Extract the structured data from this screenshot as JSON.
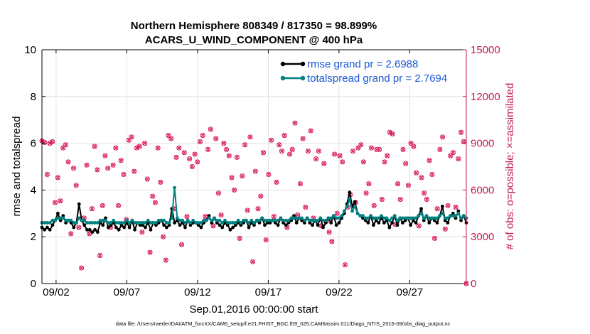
{
  "chart_data": {
    "type": "line",
    "title_line1": "Northern Hemisphere 808349 / 817350 = 98.899%",
    "title_line2": "ACARS_U_WIND_COMPONENT @ 400 hPa",
    "xlabel": "Sep.01,2016 00:00:00 start",
    "ylabel_left": "rmse and totalspread",
    "ylabel_right": "# of obs: o=possible; ×=assimilated",
    "footnote": "data file: /Users/raeder/DAI/ATM_forcXX/CAM6_setup/f.e21.FHIST_BGC.f09_025.CAM6assim.011/Diags_NTrS_2016-09/obs_diag_output.nc",
    "xlim": [
      0,
      30
    ],
    "x_tick_positions": [
      1,
      6,
      11,
      16,
      21,
      26
    ],
    "x_tick_labels": [
      "09/02",
      "09/07",
      "09/12",
      "09/17",
      "09/22",
      "09/27"
    ],
    "ylim_left": [
      0,
      10
    ],
    "y_left_ticks": [
      0,
      2,
      4,
      6,
      8,
      10
    ],
    "ylim_right": [
      0,
      15000
    ],
    "y_right_ticks": [
      0,
      3000,
      6000,
      9000,
      12000,
      15000
    ],
    "colors": {
      "rmse": "#000000",
      "spread": "#008080",
      "obs": "#d81b60",
      "right_axis": "#c2185b",
      "legend_text": "#1a57d6"
    },
    "series": [
      {
        "name": "rmse grand pr = 2.6988",
        "values": [
          2.4,
          2.3,
          2.4,
          2.3,
          2.5,
          2.7,
          3.0,
          2.7,
          2.9,
          2.6,
          2.7,
          2.6,
          2.4,
          2.6,
          3.4,
          2.7,
          2.5,
          2.3,
          2.3,
          2.2,
          2.3,
          2.2,
          2.6,
          2.5,
          2.8,
          2.4,
          2.5,
          2.6,
          2.4,
          2.3,
          2.5,
          2.4,
          2.6,
          2.4,
          2.7,
          2.3,
          2.6,
          2.5,
          2.5,
          2.4,
          2.6,
          2.3,
          2.6,
          2.5,
          2.6,
          2.7,
          2.5,
          2.4,
          2.5,
          3.2,
          2.6,
          2.7,
          2.5,
          2.6,
          2.4,
          2.7,
          2.5,
          2.6,
          2.6,
          2.5,
          2.4,
          2.6,
          2.7,
          2.9,
          2.6,
          2.8,
          2.6,
          2.5,
          2.4,
          2.6,
          2.5,
          2.3,
          2.4,
          2.5,
          2.6,
          2.5,
          2.6,
          2.7,
          2.4,
          2.6,
          2.5,
          2.7,
          2.6,
          2.8,
          2.5,
          2.6,
          2.6,
          2.7,
          2.6,
          2.5,
          2.8,
          2.6,
          2.5,
          2.6,
          2.7,
          2.9,
          2.6,
          2.8,
          2.7,
          2.6,
          2.8,
          2.6,
          2.5,
          2.7,
          2.5,
          2.8,
          2.4,
          2.6,
          2.8,
          2.6,
          2.9,
          2.5,
          2.6,
          2.8,
          3.0,
          3.4,
          3.9,
          3.3,
          3.5,
          3.0,
          2.9,
          2.8,
          2.7,
          2.6,
          2.9,
          2.5,
          2.7,
          2.6,
          2.8,
          2.6,
          2.7,
          2.4,
          2.6,
          2.9,
          2.5,
          2.8,
          2.6,
          2.7,
          2.8,
          2.5,
          2.7,
          2.6,
          2.9,
          3.2,
          2.7,
          2.9,
          2.6,
          2.8,
          2.7,
          2.6,
          2.9,
          3.3,
          2.7,
          2.6,
          2.9,
          3.0,
          2.8,
          3.1,
          2.7,
          2.9,
          2.6
        ]
      },
      {
        "name": "totalspread grand pr = 2.7694",
        "values": [
          2.6,
          2.6,
          2.6,
          2.6,
          2.7,
          2.7,
          2.8,
          2.8,
          2.8,
          2.7,
          2.7,
          2.7,
          2.6,
          2.6,
          2.8,
          2.7,
          2.7,
          2.6,
          2.6,
          2.6,
          2.6,
          2.6,
          2.7,
          2.7,
          2.7,
          2.6,
          2.6,
          2.7,
          2.6,
          2.6,
          2.6,
          2.6,
          2.7,
          2.6,
          2.7,
          2.6,
          2.6,
          2.6,
          2.6,
          2.6,
          2.7,
          2.6,
          2.6,
          2.6,
          2.7,
          2.7,
          2.7,
          2.6,
          2.6,
          2.8,
          4.1,
          2.8,
          2.7,
          2.7,
          2.6,
          2.7,
          2.6,
          2.7,
          2.6,
          2.6,
          2.6,
          2.7,
          2.7,
          2.8,
          2.7,
          2.8,
          2.7,
          2.7,
          2.6,
          2.7,
          2.6,
          2.6,
          2.6,
          2.6,
          2.7,
          2.6,
          2.7,
          2.7,
          2.6,
          2.7,
          2.6,
          2.7,
          2.7,
          2.8,
          2.7,
          2.7,
          2.7,
          2.7,
          2.7,
          2.7,
          2.8,
          2.7,
          2.7,
          2.7,
          2.8,
          2.8,
          2.8,
          2.8,
          2.8,
          2.7,
          2.8,
          2.7,
          2.7,
          2.7,
          2.7,
          2.8,
          2.7,
          2.7,
          2.8,
          2.8,
          2.9,
          2.8,
          2.8,
          2.9,
          3.1,
          3.3,
          3.6,
          3.1,
          3.3,
          3.0,
          2.9,
          2.9,
          2.8,
          2.8,
          2.9,
          2.8,
          2.8,
          2.8,
          2.9,
          2.8,
          2.8,
          2.7,
          2.8,
          2.9,
          2.7,
          2.8,
          2.8,
          2.8,
          2.8,
          2.8,
          2.8,
          2.8,
          2.9,
          3.0,
          2.8,
          2.9,
          2.8,
          2.8,
          2.8,
          2.8,
          2.9,
          3.0,
          2.8,
          2.8,
          2.9,
          2.9,
          2.9,
          3.0,
          2.8,
          2.9,
          2.8
        ]
      }
    ],
    "obs_counts": [
      9150,
      9050,
      7000,
      9000,
      9100,
      5200,
      6800,
      5300,
      8700,
      8900,
      7800,
      3200,
      7400,
      6300,
      3600,
      1000,
      4200,
      7600,
      3200,
      4800,
      8800,
      7300,
      1800,
      5000,
      8200,
      7400,
      3600,
      7600,
      8700,
      5000,
      7900,
      7000,
      4100,
      9200,
      9400,
      7200,
      8700,
      8800,
      3300,
      9000,
      6700,
      2000,
      5600,
      5200,
      8700,
      6500,
      3000,
      1500,
      9500,
      9300,
      4800,
      8100,
      8700,
      2500,
      8400,
      4300,
      8000,
      7500,
      8300,
      7800,
      9100,
      9500,
      4300,
      8600,
      9900,
      3700,
      9300,
      5800,
      4400,
      9000,
      8600,
      8200,
      6800,
      6000,
      8100,
      2900,
      6900,
      8900,
      4700,
      9400,
      1400,
      7200,
      4800,
      5600,
      8400,
      2800,
      7000,
      9200,
      4300,
      6500,
      8900,
      8500,
      9500,
      3600,
      8300,
      8600,
      10300,
      4400,
      6400,
      9300,
      4900,
      8500,
      9800,
      4200,
      8000,
      8500,
      3700,
      7700,
      4000,
      3300,
      2700,
      8300,
      4500,
      8200,
      7800,
      1200,
      4900,
      5700,
      8500,
      5200,
      8700,
      8900,
      7800,
      5800,
      6400,
      8700,
      5000,
      8600,
      8600,
      5400,
      7800,
      8200,
      9700,
      9600,
      3800,
      6400,
      5400,
      8600,
      7700,
      6300,
      9000,
      8800,
      7100,
      3700,
      6800,
      5800,
      5400,
      7900,
      7000,
      2900,
      4800,
      8600,
      9400,
      3500,
      5000,
      8200,
      8400,
      4900,
      8000,
      9700,
      9100,
      0
    ],
    "legend": [
      "rmse grand pr = 2.6988",
      "totalspread grand pr = 2.7694"
    ]
  }
}
